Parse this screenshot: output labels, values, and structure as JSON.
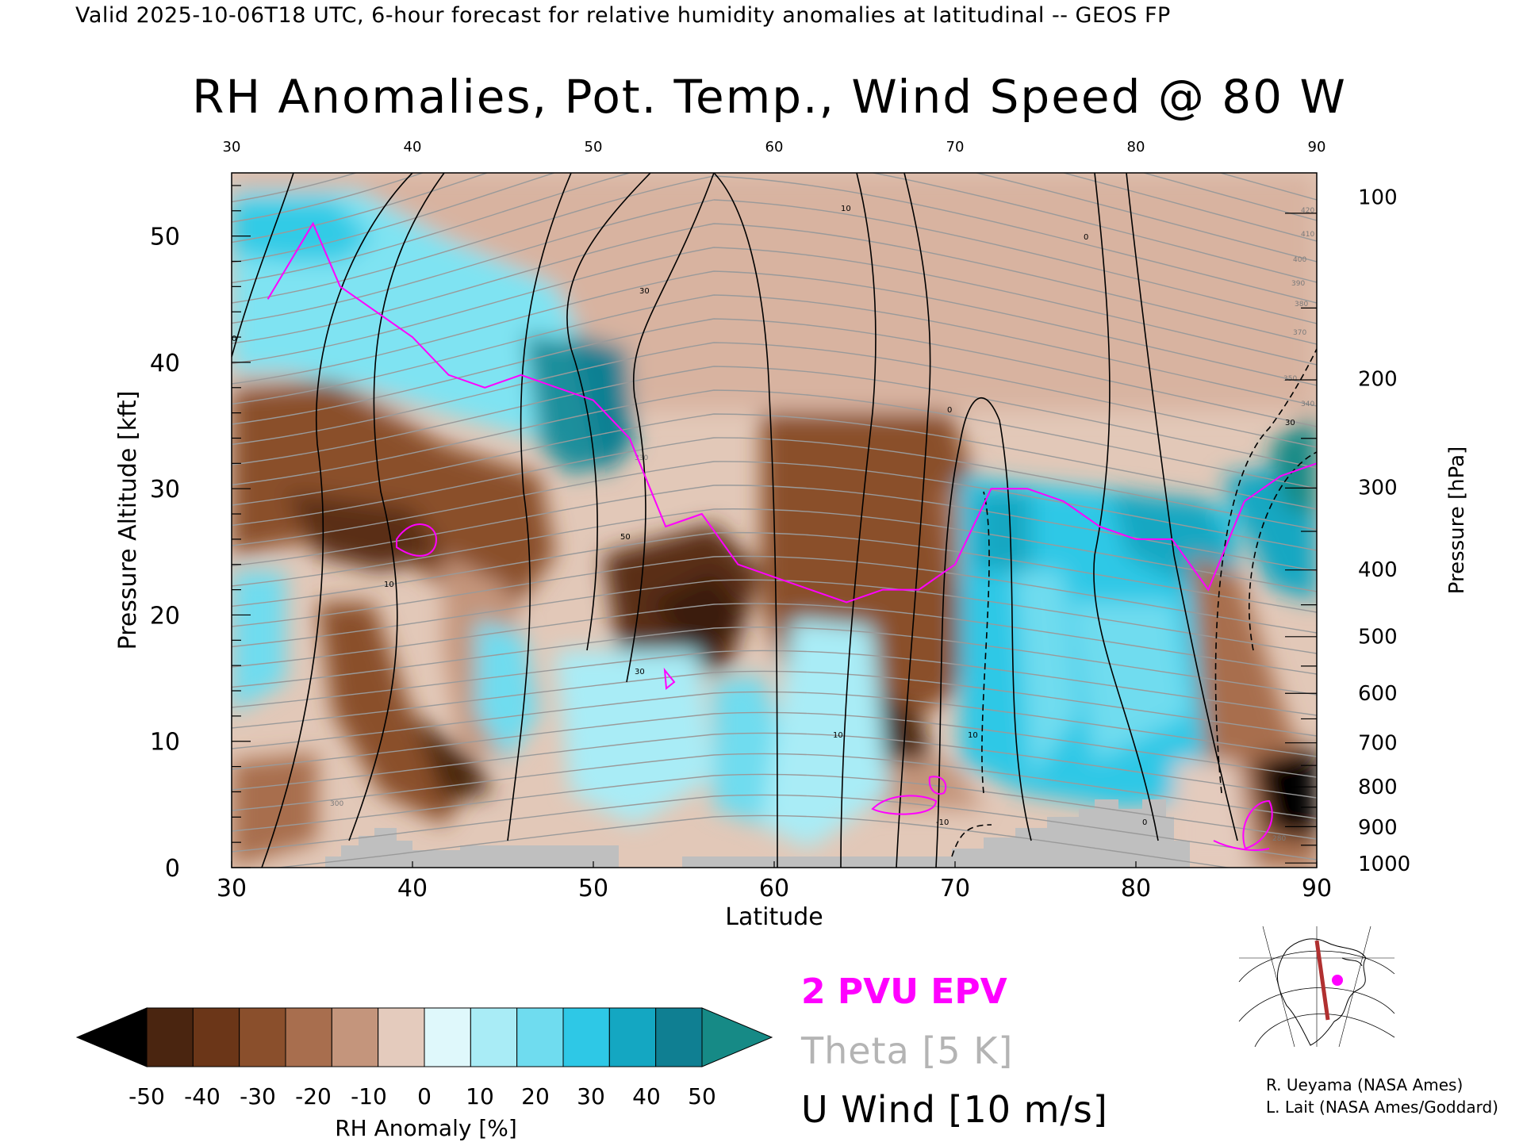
{
  "caption": "Valid 2025-10-06T18 UTC, 6-hour forecast for relative humidity anomalies at latitudinal -- GEOS FP",
  "chart_data": {
    "type": "heatmap",
    "title": "RH Anomalies, Pot. Temp., Wind Speed @ 80 W",
    "xlabel": "Latitude",
    "ylabel_left": "Pressure Altitude [kft]",
    "ylabel_right": "Pressure [hPa]",
    "xlim": [
      30,
      90
    ],
    "ylim": [
      0,
      55
    ],
    "x_ticks": [
      30,
      40,
      50,
      60,
      70,
      80,
      90
    ],
    "y_ticks": [
      0,
      10,
      20,
      30,
      40,
      50
    ],
    "pressure_ticks": [
      {
        "p": "100",
        "kft": 53.1
      },
      {
        "p": "200",
        "kft": 38.7
      },
      {
        "p": "300",
        "kft": 30.1
      },
      {
        "p": "400",
        "kft": 23.6
      },
      {
        "p": "500",
        "kft": 18.3
      },
      {
        "p": "600",
        "kft": 13.8
      },
      {
        "p": "700",
        "kft": 9.9
      },
      {
        "p": "800",
        "kft": 6.4
      },
      {
        "p": "900",
        "kft": 3.2
      },
      {
        "p": "1000",
        "kft": 0.3
      }
    ],
    "colorbar": {
      "label": "RH Anomaly [%]",
      "ticks": [
        "-50",
        "-40",
        "-30",
        "-20",
        "-10",
        "0",
        "10",
        "20",
        "30",
        "40",
        "50"
      ],
      "colors": [
        "#000000",
        "#4a2510",
        "#6b3618",
        "#8a4f2c",
        "#a86e4e",
        "#c4957c",
        "#e4cbbd",
        "#dff8fb",
        "#a9ecf6",
        "#6fdcef",
        "#2ec8e6",
        "#14a7c2",
        "#0f7f92",
        "#168a86"
      ]
    },
    "legend": [
      {
        "label": "2 PVU EPV",
        "color": "#ff00ff"
      },
      {
        "label": "Theta [5 K]",
        "color": "#b4b4b4"
      },
      {
        "label": "U Wind [10 m/s]",
        "color": "#000000"
      }
    ],
    "pv_2pvu_line": {
      "lat": [
        32,
        34.5,
        36,
        38,
        40,
        42,
        44,
        46,
        48,
        50,
        52,
        54,
        56,
        58,
        60,
        62,
        64,
        66,
        68,
        70,
        72,
        74,
        76,
        78,
        80,
        82,
        84,
        86,
        88,
        90
      ],
      "kft": [
        45,
        51,
        46,
        44,
        42,
        39,
        38,
        39,
        38,
        37,
        34,
        27,
        28,
        24,
        23,
        22,
        21,
        22,
        22,
        24,
        30,
        30,
        29,
        27,
        26,
        26,
        22,
        29,
        31,
        32
      ]
    },
    "u_wind_contours": [
      "-10",
      "0",
      "10",
      "30",
      "50"
    ],
    "theta_labels": [
      "280",
      "300",
      "330",
      "340",
      "350",
      "370",
      "380",
      "390",
      "400",
      "410",
      "420"
    ]
  },
  "credits": [
    "R. Ueyama (NASA Ames)",
    "L. Lait (NASA Ames/Goddard)"
  ]
}
